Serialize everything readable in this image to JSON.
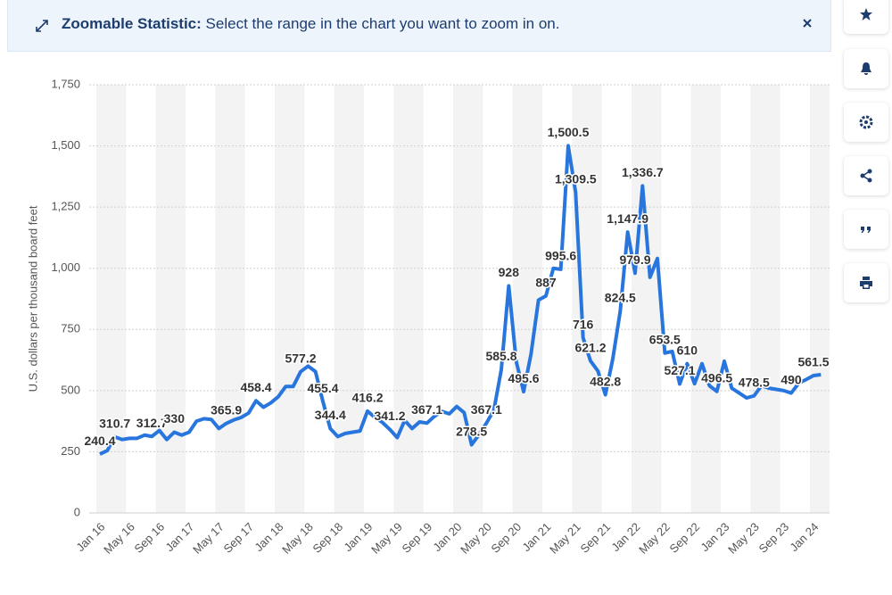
{
  "banner": {
    "label": "Zoomable Statistic:",
    "text": "Select the range in the chart you want to zoom in on."
  },
  "chart_data": {
    "type": "line",
    "y_label": "U.S. dollars per thousand board feet",
    "categories": [
      "Jan 16",
      null,
      null,
      null,
      "May 16",
      null,
      null,
      null,
      "Sep 16",
      null,
      null,
      null,
      "Jan 17",
      null,
      null,
      null,
      "May 17",
      null,
      null,
      null,
      "Sep 17",
      null,
      null,
      null,
      "Jan 18",
      null,
      null,
      null,
      "May 18",
      null,
      null,
      null,
      "Sep 18",
      null,
      null,
      null,
      "Jan 19",
      null,
      null,
      null,
      "May 19",
      null,
      null,
      null,
      "Sep 19",
      null,
      null,
      null,
      "Jan 20",
      null,
      null,
      null,
      "May 20",
      null,
      null,
      null,
      "Sep 20",
      null,
      null,
      null,
      "Jan 21",
      null,
      null,
      null,
      "May 21",
      null,
      null,
      null,
      "Sep 21",
      null,
      null,
      null,
      "Jan 22",
      null,
      null,
      null,
      "May 22",
      null,
      null,
      null,
      "Sep 22",
      null,
      null,
      null,
      "Jan 23",
      null,
      null,
      null,
      "May 23",
      null,
      null,
      null,
      "Sep 23",
      null,
      null,
      null,
      "Jan 24",
      null
    ],
    "values": [
      240.4,
      255,
      310.7,
      300,
      305,
      305,
      318,
      312.7,
      337,
      300,
      330,
      318,
      330,
      375,
      385,
      382,
      345,
      365.9,
      380,
      390,
      408,
      458.4,
      432,
      450,
      475,
      517,
      517,
      577.2,
      600,
      578,
      455.4,
      344.4,
      312,
      325,
      330,
      335,
      416.2,
      390,
      370,
      341.2,
      308,
      378,
      345,
      372,
      367.1,
      395,
      415,
      405,
      435,
      410,
      278.5,
      320,
      367.1,
      420,
      585.8,
      928,
      620,
      495.6,
      650,
      870,
      887,
      1000,
      995.6,
      1500.5,
      1309.5,
      716,
      621.2,
      580,
      482.8,
      630,
      824.5,
      1147.9,
      979.9,
      1336.7,
      963,
      1040,
      653.5,
      660,
      527.1,
      610,
      528,
      610,
      520,
      496.5,
      620,
      510,
      490,
      470,
      478.5,
      520,
      510,
      505,
      500,
      490,
      530,
      545,
      561.5,
      565
    ],
    "value_labels": [
      "240.4",
      null,
      "310.7",
      null,
      null,
      null,
      null,
      "312.7",
      null,
      null,
      "330",
      null,
      null,
      null,
      null,
      null,
      null,
      "365.9",
      null,
      null,
      null,
      "458.4",
      null,
      null,
      null,
      null,
      null,
      "577.2",
      null,
      null,
      "455.4",
      "344.4",
      null,
      null,
      null,
      null,
      "416.2",
      null,
      null,
      "341.2",
      null,
      null,
      null,
      null,
      "367.1",
      null,
      null,
      null,
      null,
      null,
      "278.5",
      null,
      "367.1",
      null,
      "585.8",
      "928",
      null,
      "495.6",
      null,
      null,
      "887",
      null,
      "995.6",
      "1,500.5",
      "1,309.5",
      "716",
      "621.2",
      null,
      "482.8",
      null,
      "824.5",
      "1,147.9",
      "979.9",
      "1,336.7",
      null,
      null,
      "653.5",
      null,
      "527.1",
      "610",
      null,
      null,
      null,
      "496.5",
      null,
      null,
      null,
      null,
      "478.5",
      null,
      null,
      null,
      null,
      "490",
      null,
      null,
      "561.5",
      null
    ],
    "color": "#2876dd",
    "ylim": [
      0,
      1750
    ],
    "yticks": [
      0,
      250,
      500,
      750,
      {
        "value": 1000,
        "label": "1,000"
      },
      {
        "value": 1250,
        "label": "1,250"
      },
      {
        "value": 1500,
        "label": "1,500"
      },
      {
        "value": 1750,
        "label": "1,750"
      }
    ],
    "grid": true
  }
}
